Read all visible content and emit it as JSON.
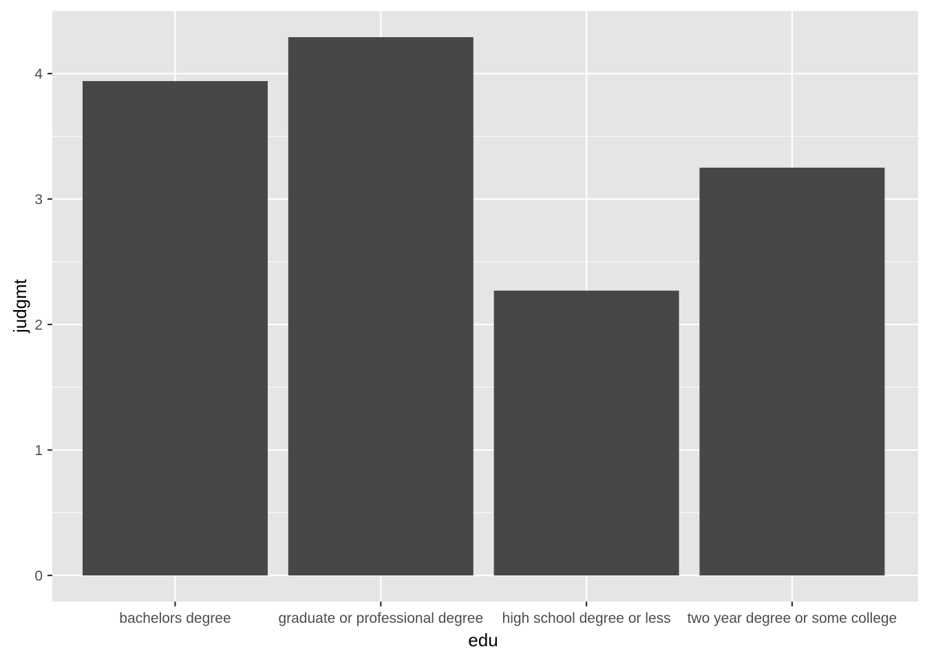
{
  "chart_data": {
    "type": "bar",
    "categories": [
      "bachelors degree",
      "graduate or professional degree",
      "high school degree or less",
      "two year degree or some college"
    ],
    "values": [
      3.94,
      4.29,
      2.27,
      3.25
    ],
    "title": "",
    "xlabel": "edu",
    "ylabel": "judgmt",
    "ylim": [
      0,
      4.5
    ],
    "yticks": [
      0,
      1,
      2,
      3,
      4
    ],
    "y_minor_gridlines": [
      0.5,
      1.5,
      2.5,
      3.5,
      4.5
    ],
    "grid": true,
    "legend": "none"
  },
  "colors": {
    "panel_background": "#e5e5e5",
    "gridline": "#ffffff",
    "bar_fill": "#474747",
    "tick_mark": "#333333",
    "tick_text": "#4d4d4d",
    "axis_title_text": "#000000"
  }
}
